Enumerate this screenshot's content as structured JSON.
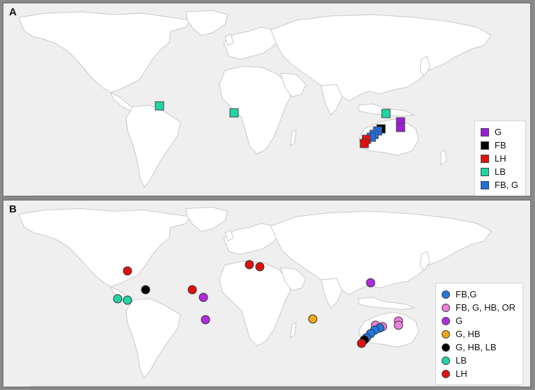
{
  "panels": {
    "a": {
      "letter": "A",
      "legend": [
        {
          "label": "G",
          "color": "#9b1fd6"
        },
        {
          "label": "FB",
          "color": "#000000"
        },
        {
          "label": "LH",
          "color": "#e01010"
        },
        {
          "label": "LB",
          "color": "#1fd6a6"
        },
        {
          "label": "FB, G",
          "color": "#1f6fe0"
        }
      ]
    },
    "b": {
      "letter": "B",
      "legend": [
        {
          "label": "FB,G",
          "color": "#1f7ae0"
        },
        {
          "label": "FB, G, HB, OR",
          "color": "#ee7fdc"
        },
        {
          "label": "G",
          "color": "#b12ae0"
        },
        {
          "label": "G, HB",
          "color": "#f0a818"
        },
        {
          "label": "G, HB, LB",
          "color": "#000000"
        },
        {
          "label": "LB",
          "color": "#1fd6a6"
        },
        {
          "label": "LH",
          "color": "#e01010"
        }
      ]
    }
  }
}
